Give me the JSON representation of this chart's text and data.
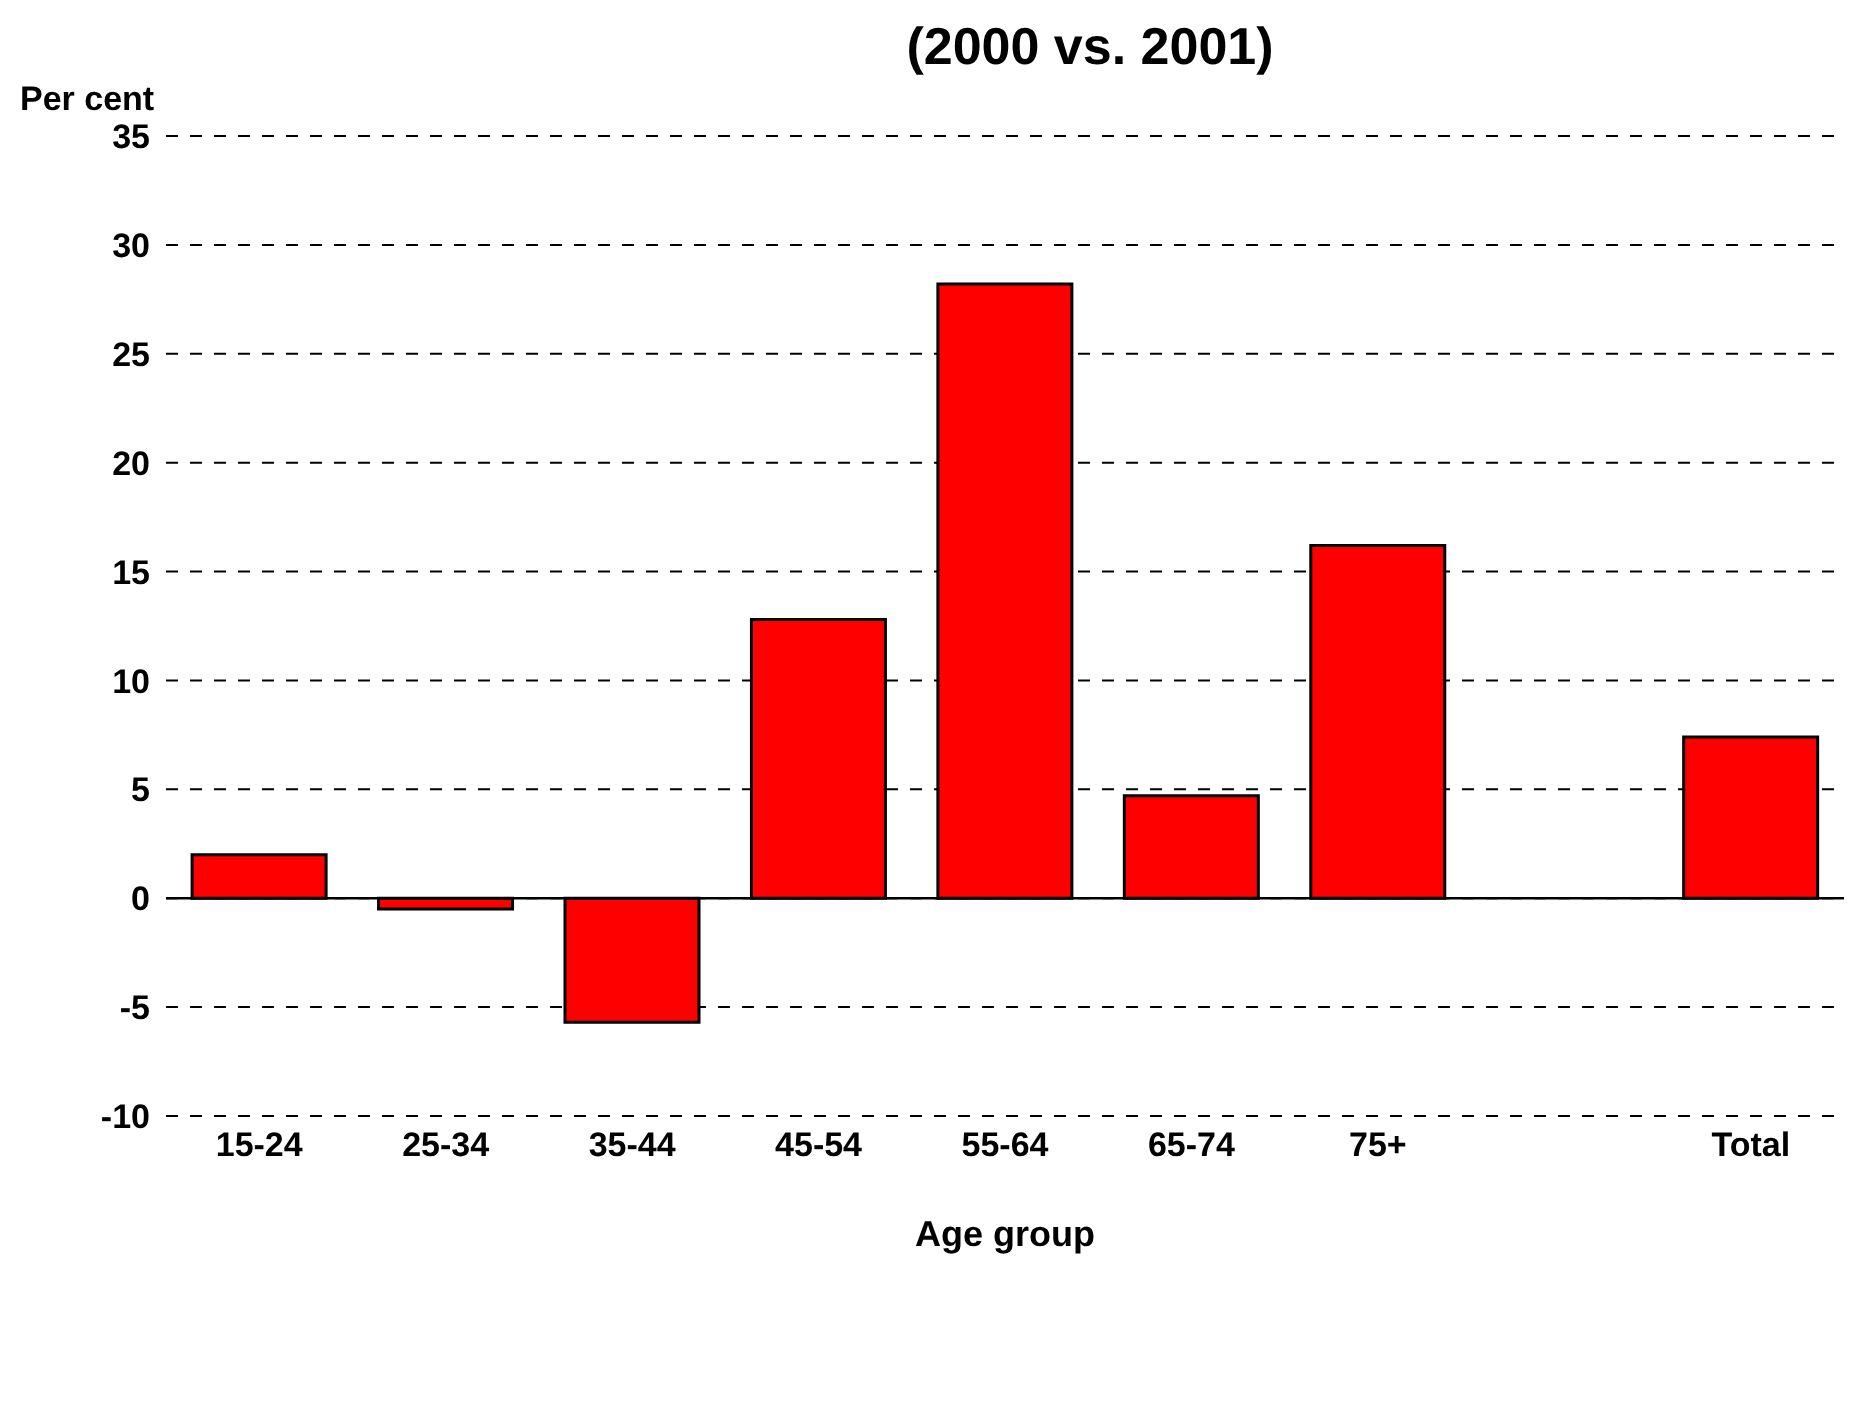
{
  "chart_data": {
    "type": "bar",
    "title": "(2000 vs. 2001)",
    "ylabel": "Per cent",
    "xlabel": "Age group",
    "categories": [
      "15-24",
      "25-34",
      "35-44",
      "45-54",
      "55-64",
      "65-74",
      "75+",
      null,
      "Total"
    ],
    "values": [
      2.0,
      -0.5,
      -5.7,
      12.8,
      28.2,
      4.7,
      16.2,
      null,
      7.4
    ],
    "color": "#ff0000",
    "ylim": [
      -10,
      35
    ],
    "yticks": [
      -10,
      -5,
      0,
      5,
      10,
      15,
      20,
      25,
      30,
      35
    ],
    "grid": "y",
    "legend": false
  }
}
